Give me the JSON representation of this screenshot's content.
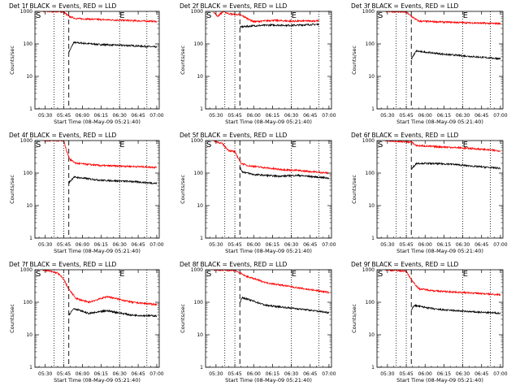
{
  "figure": {
    "start_time_label": "Start Time (08-May-09 05:21:40)",
    "ylabel": "Counts/sec",
    "time_ticks": [
      "05:30",
      "05:45",
      "06:00",
      "06:15",
      "06:30",
      "06:45",
      "07:00"
    ],
    "y_ticks": [
      "1",
      "10",
      "100",
      "1000"
    ],
    "marker_start": "S",
    "marker_end": "E",
    "colors": {
      "events": "#000000",
      "lld": "#ff0000",
      "frame": "#000000"
    }
  },
  "chart_data": [
    {
      "type": "line",
      "title": "Det 1f BLACK = Events, RED = LLD",
      "x_range": [
        "05:21:40",
        "07:02"
      ],
      "y_range": [
        1,
        1000
      ],
      "y_scale": "log",
      "dotted_lines": [
        "05:37",
        "05:45",
        "06:30",
        "06:52"
      ],
      "dashed_line": "05:49",
      "series": [
        {
          "name": "Events",
          "times": [
            "05:49",
            "05:53",
            "06:15",
            "06:40",
            "07:00"
          ],
          "values": [
            55,
            110,
            95,
            88,
            80
          ]
        },
        {
          "name": "LLD",
          "times": [
            "05:28",
            "05:37",
            "05:45",
            "05:49",
            "05:55",
            "06:15",
            "06:40",
            "07:00"
          ],
          "values": [
            1000,
            1000,
            950,
            700,
            600,
            560,
            520,
            490
          ]
        }
      ]
    },
    {
      "type": "line",
      "title": "Det 2f BLACK = Events, RED = LLD",
      "x_range": [
        "05:21:40",
        "07:02"
      ],
      "y_range": [
        1,
        1000
      ],
      "y_scale": "log",
      "dotted_lines": [
        "05:37",
        "05:45",
        "06:30",
        "06:52"
      ],
      "dashed_line": "05:49",
      "series": [
        {
          "name": "Events",
          "times": [
            "05:49",
            "06:00",
            "06:15",
            "06:30",
            "06:52"
          ],
          "values": [
            330,
            360,
            380,
            370,
            400
          ]
        },
        {
          "name": "LLD",
          "times": [
            "05:28",
            "05:31",
            "05:36",
            "05:40",
            "05:45",
            "05:49",
            "06:00",
            "06:15",
            "06:30",
            "06:52"
          ],
          "values": [
            1000,
            700,
            1000,
            850,
            800,
            800,
            480,
            530,
            500,
            510
          ]
        }
      ]
    },
    {
      "type": "line",
      "title": "Det 3f BLACK = Events, RED = LLD",
      "x_range": [
        "05:21:40",
        "07:02"
      ],
      "y_range": [
        1,
        1000
      ],
      "y_scale": "log",
      "dotted_lines": [
        "05:37",
        "05:45",
        "06:30",
        "06:52"
      ],
      "dashed_line": "05:49",
      "series": [
        {
          "name": "Events",
          "times": [
            "05:49",
            "05:53",
            "06:15",
            "06:40",
            "07:00"
          ],
          "values": [
            35,
            60,
            48,
            40,
            35
          ]
        },
        {
          "name": "LLD",
          "times": [
            "05:28",
            "05:45",
            "05:49",
            "05:55",
            "06:15",
            "06:40",
            "07:00"
          ],
          "values": [
            1000,
            950,
            700,
            500,
            470,
            440,
            420
          ]
        }
      ]
    },
    {
      "type": "line",
      "title": "Det 4f BLACK = Events, RED = LLD",
      "x_range": [
        "05:21:40",
        "07:02"
      ],
      "y_range": [
        1,
        1000
      ],
      "y_scale": "log",
      "dotted_lines": [
        "05:37",
        "05:45",
        "06:30",
        "06:52"
      ],
      "dashed_line": "05:49",
      "series": [
        {
          "name": "Events",
          "times": [
            "05:49",
            "05:53",
            "06:15",
            "06:40",
            "07:00"
          ],
          "values": [
            50,
            75,
            60,
            55,
            48
          ]
        },
        {
          "name": "LLD",
          "times": [
            "05:28",
            "05:45",
            "05:47",
            "05:50",
            "05:55",
            "06:15",
            "06:40",
            "07:00"
          ],
          "values": [
            1000,
            1000,
            500,
            260,
            200,
            170,
            160,
            150
          ]
        }
      ]
    },
    {
      "type": "line",
      "title": "Det 5f BLACK = Events, RED = LLD",
      "x_range": [
        "05:21:40",
        "07:02"
      ],
      "y_range": [
        1,
        1000
      ],
      "y_scale": "log",
      "dotted_lines": [
        "05:37",
        "05:45",
        "06:30",
        "06:52"
      ],
      "dashed_line": "05:49",
      "series": [
        {
          "name": "Events",
          "times": [
            "05:49",
            "05:51",
            "06:00",
            "06:20",
            "06:35",
            "07:00"
          ],
          "values": [
            150,
            110,
            90,
            80,
            85,
            70
          ]
        },
        {
          "name": "LLD",
          "times": [
            "05:28",
            "05:35",
            "05:40",
            "05:45",
            "05:50",
            "05:55",
            "06:20",
            "06:35",
            "07:00"
          ],
          "values": [
            1000,
            800,
            500,
            450,
            200,
            170,
            130,
            120,
            100
          ]
        }
      ]
    },
    {
      "type": "line",
      "title": "Det 6f BLACK = Events, RED = LLD",
      "x_range": [
        "05:21:40",
        "07:02"
      ],
      "y_range": [
        1,
        1000
      ],
      "y_scale": "log",
      "dotted_lines": [
        "05:37",
        "05:45",
        "06:30",
        "06:52"
      ],
      "dashed_line": "05:49",
      "series": [
        {
          "name": "Events",
          "times": [
            "05:49",
            "05:53",
            "06:20",
            "06:40",
            "07:00"
          ],
          "values": [
            130,
            200,
            190,
            160,
            140
          ]
        },
        {
          "name": "LLD",
          "times": [
            "05:28",
            "05:49",
            "05:53",
            "06:20",
            "06:40",
            "07:00"
          ],
          "values": [
            1000,
            900,
            700,
            620,
            560,
            480
          ]
        }
      ]
    },
    {
      "type": "line",
      "title": "Det 7f BLACK = Events, RED = LLD",
      "x_range": [
        "05:21:40",
        "07:02"
      ],
      "y_range": [
        1,
        1000
      ],
      "y_scale": "log",
      "dotted_lines": [
        "05:37",
        "05:45",
        "06:30",
        "06:52"
      ],
      "dashed_line": "05:49",
      "series": [
        {
          "name": "Events",
          "times": [
            "05:49",
            "05:53",
            "06:05",
            "06:20",
            "06:40",
            "07:00"
          ],
          "values": [
            40,
            65,
            45,
            55,
            40,
            38
          ]
        },
        {
          "name": "LLD",
          "times": [
            "05:28",
            "05:40",
            "05:45",
            "05:49",
            "05:55",
            "06:05",
            "06:20",
            "06:40",
            "07:00"
          ],
          "values": [
            1000,
            800,
            500,
            250,
            130,
            100,
            150,
            100,
            85
          ]
        }
      ]
    },
    {
      "type": "line",
      "title": "Det 8f BLACK = Events, RED = LLD",
      "x_range": [
        "05:21:40",
        "07:02"
      ],
      "y_range": [
        1,
        1000
      ],
      "y_scale": "log",
      "dotted_lines": [
        "05:37",
        "05:45",
        "06:30",
        "06:52"
      ],
      "dashed_line": "05:49",
      "series": [
        {
          "name": "Events",
          "times": [
            "05:49",
            "05:51",
            "06:10",
            "06:40",
            "07:00"
          ],
          "values": [
            100,
            140,
            80,
            60,
            48
          ]
        },
        {
          "name": "LLD",
          "times": [
            "05:28",
            "05:45",
            "05:49",
            "05:53",
            "06:10",
            "06:40",
            "07:00"
          ],
          "values": [
            1000,
            950,
            800,
            650,
            400,
            260,
            200
          ]
        }
      ]
    },
    {
      "type": "line",
      "title": "Det 9f BLACK = Events, RED = LLD",
      "x_range": [
        "05:21:40",
        "07:02"
      ],
      "y_range": [
        1,
        1000
      ],
      "y_scale": "log",
      "dotted_lines": [
        "05:37",
        "05:45",
        "06:30",
        "06:52"
      ],
      "dashed_line": "05:49",
      "series": [
        {
          "name": "Events",
          "times": [
            "05:49",
            "05:51",
            "06:10",
            "06:40",
            "07:00"
          ],
          "values": [
            55,
            80,
            60,
            50,
            46
          ]
        },
        {
          "name": "LLD",
          "times": [
            "05:28",
            "05:45",
            "05:49",
            "05:55",
            "06:10",
            "06:40",
            "07:00"
          ],
          "values": [
            1000,
            900,
            500,
            260,
            220,
            190,
            170
          ]
        }
      ]
    }
  ]
}
